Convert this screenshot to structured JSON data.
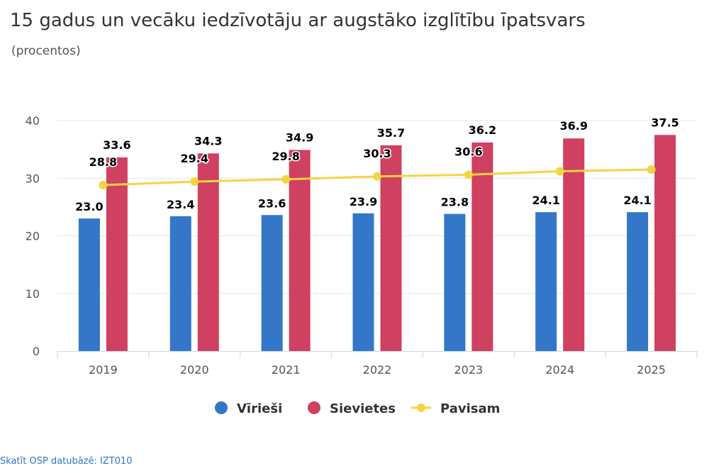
{
  "title": "15 gadus un vecāku iedzīvotāju ar augstāko izglītību īpatsvars",
  "subtitle": "(procentos)",
  "source_link": "Skatīt OSP datubāzē: IZT010",
  "colors": {
    "men": "#3477c9",
    "women": "#d04060",
    "total": "#f5d442",
    "grid": "#e6e6e6",
    "axis": "#ccd6eb"
  },
  "chart_data": {
    "type": "bar",
    "categories": [
      "2019",
      "2020",
      "2021",
      "2022",
      "2023",
      "2024",
      "2025"
    ],
    "ylim": [
      0,
      40
    ],
    "yticks": [
      0,
      10,
      20,
      30,
      40
    ],
    "grid": true,
    "legend_position": "bottom-center",
    "series": [
      {
        "name": "Vīrieši",
        "type": "bar",
        "color": "#3477c9",
        "values": [
          23.0,
          23.4,
          23.6,
          23.9,
          23.8,
          24.1,
          24.1
        ]
      },
      {
        "name": "Sievietes",
        "type": "bar",
        "color": "#d04060",
        "values": [
          33.6,
          34.3,
          34.9,
          35.7,
          36.2,
          36.9,
          37.5
        ]
      },
      {
        "name": "Pavisam",
        "type": "line",
        "color": "#f5d442",
        "values": [
          28.8,
          29.4,
          29.8,
          30.3,
          30.6,
          31.2,
          31.5
        ]
      }
    ],
    "data_labels": {
      "Vīrieši": [
        "23.0",
        "23.4",
        "23.6",
        "23.9",
        "23.8",
        "24.1",
        "24.1"
      ],
      "Sievietes": [
        "33.6",
        "34.3",
        "34.9",
        "35.7",
        "36.2",
        "36.9",
        "37.5"
      ],
      "Pavisam": [
        "28.8",
        "29.4",
        "29.8",
        "30.3",
        "30.6",
        "",
        ""
      ]
    }
  }
}
